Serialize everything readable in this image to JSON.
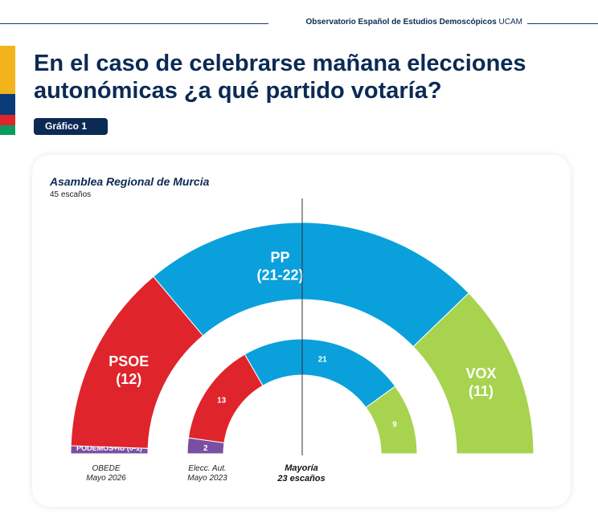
{
  "header": {
    "org": "Observatorio Español de Estudios Demoscópicos",
    "brand": "UCAM"
  },
  "title": "En el caso de celebrarse mañana elecciones autonómicas ¿a qué partido votaría?",
  "badge": "Gráfico 1",
  "colors": {
    "navy": "#0b2a54",
    "PP": "#0aa0dc",
    "PSOE": "#e0242b",
    "VOX": "#a7d34f",
    "PODEMOS": "#7a4fa3",
    "stripes": [
      "#f2b31b",
      "#0b3c7a",
      "#e0242b",
      "#0a9b5f"
    ]
  },
  "chart_data": {
    "type": "parliament",
    "title": "Asamblea Regional de Murcia",
    "subtitle": "45 escaños",
    "total_seats": 45,
    "series": [
      {
        "name": "OBEDE Mayo 2026",
        "caption": [
          "OBEDE",
          "Mayo 2026"
        ],
        "parties": [
          {
            "party": "PODEMOS+IU",
            "seats": 0.5,
            "label": "PODEMOS+IU (0-1)",
            "color": "#7a4fa3"
          },
          {
            "party": "PSOE",
            "seats": 12,
            "label_name": "PSOE",
            "label_value": "(12)",
            "color": "#e0242b"
          },
          {
            "party": "PP",
            "seats": 21.5,
            "label_name": "PP",
            "label_value": "(21-22)",
            "color": "#0aa0dc"
          },
          {
            "party": "VOX",
            "seats": 11,
            "label_name": "VOX",
            "label_value": "(11)",
            "color": "#a7d34f"
          }
        ]
      },
      {
        "name": "Elecc. Aut. Mayo 2023",
        "caption": [
          "Elecc. Aut.",
          "Mayo 2023"
        ],
        "parties": [
          {
            "party": "PODEMOS",
            "seats": 2,
            "label": "2",
            "color": "#7a4fa3"
          },
          {
            "party": "PSOE",
            "seats": 13,
            "label": "13",
            "color": "#e0242b"
          },
          {
            "party": "PP",
            "seats": 21,
            "label": "21",
            "color": "#0aa0dc"
          },
          {
            "party": "VOX",
            "seats": 9,
            "label": "9",
            "color": "#a7d34f"
          }
        ]
      }
    ],
    "majority": {
      "seats": 23,
      "caption": [
        "Mayoría",
        "23 escaños"
      ]
    }
  }
}
